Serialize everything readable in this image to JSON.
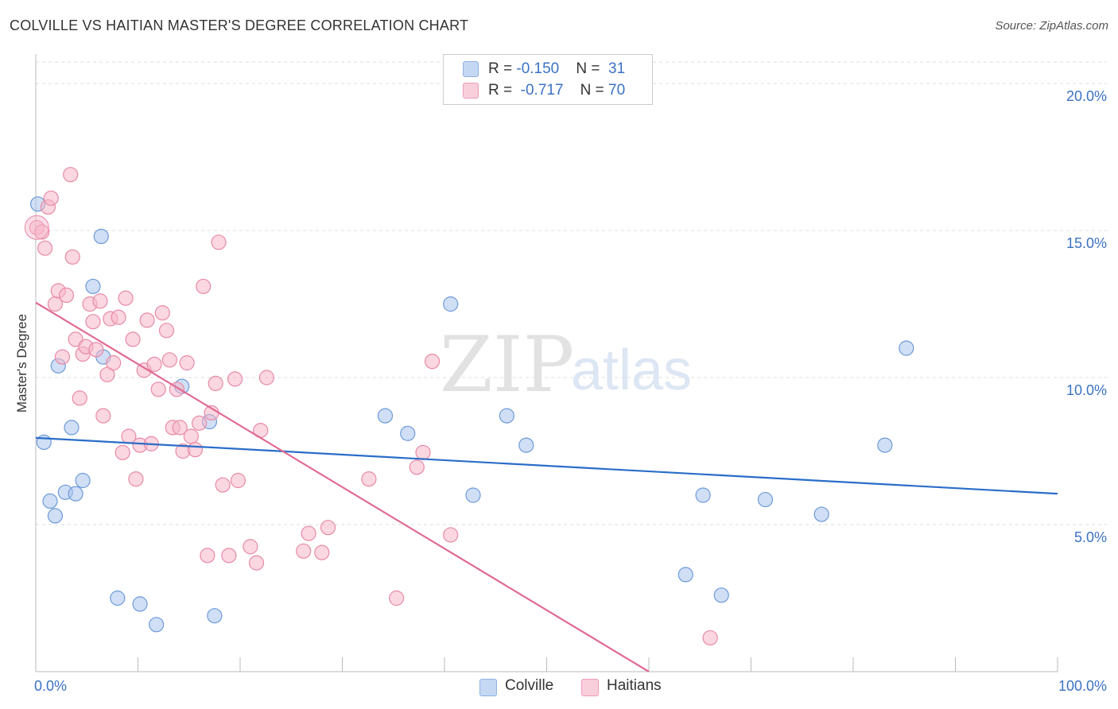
{
  "title": "COLVILLE VS HAITIAN MASTER'S DEGREE CORRELATION CHART",
  "source": "Source: ZipAtlas.com",
  "legend": {
    "rows": [
      {
        "r_label": "R = ",
        "r_value": "-0.150",
        "n_label": "N = ",
        "n_value": "31",
        "color": "#a9c5ee"
      },
      {
        "r_label": "R = ",
        "r_value": "-0.717",
        "n_label": "N = ",
        "n_value": "70",
        "color": "#f6b6c9"
      }
    ]
  },
  "bottom_legend": [
    {
      "label": "Colville",
      "color": "#a9c5ee"
    },
    {
      "label": "Haitians",
      "color": "#f6b6c9"
    }
  ],
  "watermark": {
    "zip": "ZIP",
    "atlas": "atlas"
  },
  "chart_data": {
    "type": "scatter",
    "xlabel": "",
    "ylabel": "Master's Degree",
    "x_tick_labels": [
      "0.0%",
      "100.0%"
    ],
    "y_tick_labels": [
      "5.0%",
      "10.0%",
      "15.0%",
      "20.0%"
    ],
    "y_ticks": [
      5,
      10,
      15,
      20
    ],
    "xlim": [
      0,
      100
    ],
    "ylim": [
      0,
      21
    ],
    "grid": true,
    "legend_position": "top-center",
    "series": [
      {
        "name": "Colville",
        "color": "#a9c5ee",
        "stroke": "#6d9ad8",
        "line_color": "#2a6dc9",
        "trend": [
          [
            0,
            7.95
          ],
          [
            100,
            6.05
          ]
        ],
        "points": [
          [
            0.2,
            15.9
          ],
          [
            0.8,
            7.8
          ],
          [
            1.4,
            5.8
          ],
          [
            1.9,
            5.3
          ],
          [
            2.2,
            10.4
          ],
          [
            2.9,
            6.1
          ],
          [
            3.5,
            8.3
          ],
          [
            3.9,
            6.05
          ],
          [
            4.6,
            6.5
          ],
          [
            5.6,
            13.1
          ],
          [
            6.4,
            14.8
          ],
          [
            6.6,
            10.7
          ],
          [
            8.0,
            2.5
          ],
          [
            10.2,
            2.3
          ],
          [
            11.8,
            1.6
          ],
          [
            14.3,
            9.7
          ],
          [
            17.0,
            8.5
          ],
          [
            17.5,
            1.9
          ],
          [
            34.2,
            8.7
          ],
          [
            36.4,
            8.1
          ],
          [
            40.6,
            12.5
          ],
          [
            42.8,
            6.0
          ],
          [
            46.1,
            8.7
          ],
          [
            48.0,
            7.7
          ],
          [
            63.6,
            3.3
          ],
          [
            65.3,
            6.0
          ],
          [
            67.1,
            2.6
          ],
          [
            71.4,
            5.85
          ],
          [
            76.9,
            5.35
          ],
          [
            83.1,
            7.7
          ],
          [
            85.2,
            11.0
          ]
        ]
      },
      {
        "name": "Haitians",
        "color": "#f6b6c9",
        "stroke": "#e88aa6",
        "line_color": "#e06a93",
        "trend": [
          [
            0,
            12.55
          ],
          [
            60,
            0
          ]
        ],
        "points": [
          [
            0.1,
            15.1
          ],
          [
            0.6,
            14.95
          ],
          [
            0.9,
            14.4
          ],
          [
            1.2,
            15.8
          ],
          [
            1.5,
            16.1
          ],
          [
            1.9,
            12.5
          ],
          [
            2.2,
            12.95
          ],
          [
            2.6,
            10.7
          ],
          [
            3.0,
            12.8
          ],
          [
            3.4,
            16.9
          ],
          [
            3.6,
            14.1
          ],
          [
            3.9,
            11.3
          ],
          [
            4.3,
            9.3
          ],
          [
            4.6,
            10.8
          ],
          [
            4.9,
            11.05
          ],
          [
            5.3,
            12.5
          ],
          [
            5.6,
            11.9
          ],
          [
            5.9,
            10.95
          ],
          [
            6.3,
            12.6
          ],
          [
            6.6,
            8.7
          ],
          [
            7.0,
            10.1
          ],
          [
            7.3,
            12.0
          ],
          [
            7.6,
            10.5
          ],
          [
            8.1,
            12.05
          ],
          [
            8.5,
            7.45
          ],
          [
            8.8,
            12.7
          ],
          [
            9.1,
            8.0
          ],
          [
            9.5,
            11.3
          ],
          [
            9.8,
            6.55
          ],
          [
            10.2,
            7.7
          ],
          [
            10.6,
            10.25
          ],
          [
            10.9,
            11.95
          ],
          [
            11.3,
            7.75
          ],
          [
            11.6,
            10.45
          ],
          [
            12.0,
            9.6
          ],
          [
            12.4,
            12.2
          ],
          [
            12.8,
            11.6
          ],
          [
            13.1,
            10.6
          ],
          [
            13.4,
            8.3
          ],
          [
            13.8,
            9.6
          ],
          [
            14.1,
            8.3
          ],
          [
            14.4,
            7.5
          ],
          [
            14.8,
            10.5
          ],
          [
            15.2,
            8.0
          ],
          [
            15.6,
            7.55
          ],
          [
            16.0,
            8.45
          ],
          [
            16.4,
            13.1
          ],
          [
            16.8,
            3.95
          ],
          [
            17.2,
            8.8
          ],
          [
            17.6,
            9.8
          ],
          [
            17.9,
            14.6
          ],
          [
            18.3,
            6.35
          ],
          [
            18.9,
            3.95
          ],
          [
            19.5,
            9.95
          ],
          [
            19.8,
            6.5
          ],
          [
            21.0,
            4.25
          ],
          [
            21.6,
            3.7
          ],
          [
            22.0,
            8.2
          ],
          [
            22.6,
            10.0
          ],
          [
            26.2,
            4.1
          ],
          [
            26.7,
            4.7
          ],
          [
            28.0,
            4.05
          ],
          [
            28.6,
            4.9
          ],
          [
            32.6,
            6.55
          ],
          [
            35.3,
            2.5
          ],
          [
            37.3,
            6.95
          ],
          [
            37.9,
            7.45
          ],
          [
            38.8,
            10.55
          ],
          [
            40.6,
            4.65
          ],
          [
            66.0,
            1.15
          ]
        ]
      }
    ]
  }
}
